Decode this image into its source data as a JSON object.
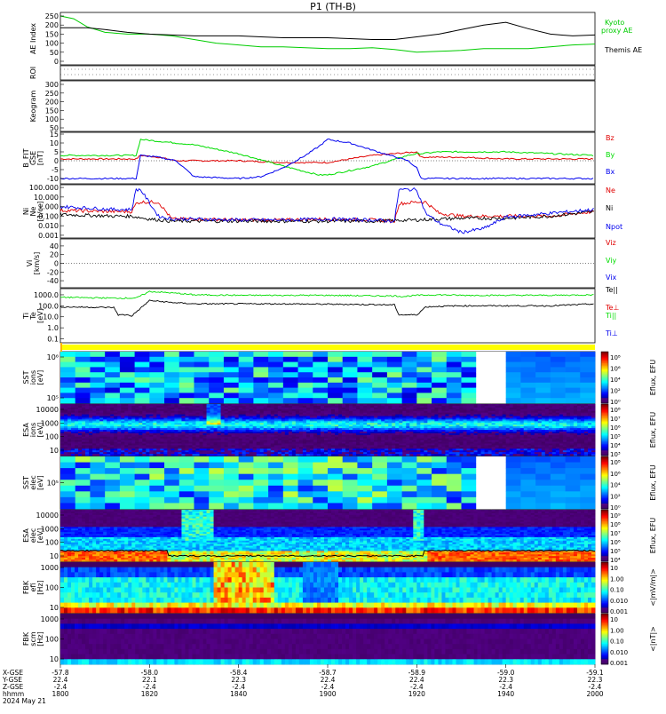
{
  "title": "P1 (TH-B)",
  "colors": {
    "kyoto": "#00cc00",
    "themis": "#000000",
    "red": "#e00000",
    "green": "#00dd00",
    "blue": "#0000ee",
    "bar_yellow": "#ffff00",
    "bar_orange": "#ffb000"
  },
  "chart_data": [
    {
      "type": "line",
      "panel": "ae",
      "ylabel": "AE Index",
      "yticks": [
        "250",
        "200",
        "150",
        "100",
        "50",
        "0"
      ],
      "ylim": [
        0,
        250
      ],
      "series": [
        {
          "name": "Kyoto proxy AE",
          "color": "#00cc00",
          "x": [
            1800,
            1803,
            1806,
            1810,
            1815,
            1820,
            1825,
            1830,
            1835,
            1840,
            1845,
            1850,
            1855,
            1900,
            1905,
            1910,
            1915,
            1920,
            1925,
            1930,
            1935,
            1940,
            1945,
            1950,
            1955,
            2000
          ],
          "y": [
            250,
            235,
            190,
            160,
            150,
            150,
            140,
            120,
            100,
            90,
            80,
            80,
            75,
            70,
            70,
            75,
            65,
            50,
            55,
            60,
            70,
            70,
            70,
            80,
            90,
            95
          ]
        },
        {
          "name": "Themis AE",
          "color": "#000000",
          "x": [
            1800,
            1803,
            1806,
            1810,
            1815,
            1820,
            1825,
            1830,
            1835,
            1840,
            1845,
            1850,
            1855,
            1900,
            1905,
            1910,
            1915,
            1920,
            1925,
            1930,
            1935,
            1940,
            1945,
            1950,
            1955,
            2000
          ],
          "y": [
            185,
            185,
            185,
            175,
            160,
            150,
            145,
            140,
            140,
            140,
            135,
            130,
            130,
            130,
            125,
            120,
            120,
            135,
            150,
            175,
            200,
            215,
            180,
            150,
            140,
            145
          ]
        }
      ]
    },
    {
      "type": "table",
      "panel": "roi",
      "ylabel": "ROI"
    },
    {
      "type": "heatmap",
      "panel": "keogram",
      "ylabel": "Keogram",
      "yticks": [
        "300",
        "250",
        "200",
        "150",
        "100",
        "50"
      ]
    },
    {
      "type": "line",
      "panel": "bfield",
      "ylabel": "B_FIT",
      "ylabel2": "GSE",
      "ylabel3": "[nT]",
      "yticks": [
        "15",
        "10",
        "5",
        "0",
        "-5",
        "-10"
      ],
      "ylim": [
        -12,
        15
      ],
      "series": [
        {
          "name": "Bz",
          "color": "#e00000",
          "x": [
            1800,
            1810,
            1815,
            1817,
            1818,
            1822,
            1826,
            1830,
            1840,
            1850,
            1900,
            1910,
            1920,
            1921,
            1930,
            1940,
            1950,
            2000
          ],
          "y": [
            1,
            1,
            1,
            1,
            3,
            2,
            0,
            0,
            0,
            -1,
            -1,
            3,
            5,
            2,
            2,
            1,
            1,
            1
          ]
        },
        {
          "name": "By",
          "color": "#00dd00",
          "x": [
            1800,
            1810,
            1815,
            1817,
            1818,
            1822,
            1826,
            1830,
            1840,
            1850,
            1858,
            1900,
            1910,
            1918,
            1920,
            1921,
            1925,
            1930,
            1940,
            1950,
            2000
          ],
          "y": [
            3,
            3,
            3,
            3,
            12,
            11,
            10,
            9,
            4,
            -3,
            -8,
            -8,
            -3,
            3,
            4,
            4,
            5,
            5,
            5,
            4,
            3
          ]
        },
        {
          "name": "Bx",
          "color": "#0000ee",
          "x": [
            1800,
            1810,
            1815,
            1817,
            1818,
            1822,
            1826,
            1830,
            1840,
            1845,
            1850,
            1855,
            1858,
            1900,
            1905,
            1910,
            1918,
            1920,
            1921,
            1925,
            1930,
            1940,
            1950,
            2000
          ],
          "y": [
            -10,
            -10,
            -10,
            -10,
            3,
            2,
            0,
            -9,
            -10,
            -9,
            -4,
            3,
            8,
            12,
            10,
            6,
            0,
            -4,
            -10,
            -10,
            -10,
            -10,
            -10,
            -10
          ]
        }
      ]
    },
    {
      "type": "line",
      "panel": "density",
      "ylabel": "Ni",
      "ylabel2": "Ne",
      "ylabel3": "[1/cc]",
      "yticks": [
        "100.000",
        "10.000",
        "1.000",
        "0.100",
        "0.010",
        "0.001"
      ],
      "ylim_log": [
        -3,
        2
      ],
      "series": [
        {
          "name": "Ne",
          "color": "#e00000",
          "x": [
            1800,
            1812,
            1816,
            1817,
            1818,
            1822,
            1825,
            1830,
            1840,
            1850,
            1900,
            1910,
            1915,
            1916,
            1920,
            1922,
            1925,
            1930,
            1940,
            1950,
            2000
          ],
          "y": [
            0.4,
            0.3,
            0.3,
            2,
            3,
            3,
            0.05,
            0.05,
            0.04,
            0.04,
            0.05,
            0.04,
            0.03,
            2,
            3,
            3,
            0.2,
            0.1,
            0.1,
            0.1,
            0.3
          ]
        },
        {
          "name": "Ni",
          "color": "#000000",
          "x": [
            1800,
            1812,
            1816,
            1820,
            1825,
            1830,
            1840,
            1850,
            1900,
            1910,
            1920,
            1925,
            1930,
            1940,
            1950,
            2000
          ],
          "y": [
            0.15,
            0.1,
            0.1,
            0.05,
            0.03,
            0.03,
            0.03,
            0.03,
            0.03,
            0.03,
            0.04,
            0.05,
            0.06,
            0.06,
            0.1,
            0.3
          ]
        },
        {
          "name": "Npot",
          "color": "#0000ee",
          "x": [
            1800,
            1812,
            1816,
            1817,
            1818,
            1822,
            1825,
            1830,
            1840,
            1850,
            1900,
            1910,
            1915,
            1916,
            1920,
            1922,
            1925,
            1930,
            1935,
            1940,
            1950,
            2000
          ],
          "y": [
            1,
            0.5,
            0.5,
            60,
            60,
            0.1,
            0.05,
            0.05,
            0.04,
            0.04,
            0.05,
            0.04,
            0.03,
            60,
            60,
            0.2,
            0.02,
            0.002,
            0.005,
            0.08,
            0.2,
            0.5
          ]
        }
      ]
    },
    {
      "type": "line",
      "panel": "velocity",
      "ylabel": "Vi",
      "ylabel2": "[km/s]",
      "yticks": [
        "40",
        "20",
        "0",
        "-20",
        "-40"
      ],
      "series": [
        {
          "name": "Viz",
          "color": "#e00000"
        },
        {
          "name": "Viy",
          "color": "#00dd00"
        },
        {
          "name": "Vix",
          "color": "#0000ee"
        }
      ]
    },
    {
      "type": "line",
      "panel": "temperature",
      "ylabel": "Ti",
      "ylabel2": "Te",
      "ylabel3": "[eV]",
      "yticks": [
        "1000.0",
        "100.0",
        "10.0",
        "1.0",
        "0.1"
      ],
      "ylim_log": [
        -1.2,
        3.4
      ],
      "labels": [
        "Te||",
        "Te⊥",
        "Ti||",
        "Ti⊥"
      ],
      "series": [
        {
          "name": "Ti",
          "color": "#00dd00",
          "x": [
            1800,
            1812,
            1815,
            1817,
            1820,
            1825,
            1830,
            1840,
            1850,
            1900,
            1910,
            1915,
            1917,
            1920,
            1925,
            1930,
            1940,
            1950,
            2000
          ],
          "y": [
            600,
            500,
            500,
            500,
            2000,
            1500,
            1000,
            900,
            900,
            900,
            800,
            800,
            700,
            900,
            1000,
            900,
            900,
            900,
            1000
          ]
        },
        {
          "name": "Te",
          "color": "#000000",
          "x": [
            1800,
            1812,
            1813,
            1815,
            1816,
            1818,
            1820,
            1825,
            1830,
            1840,
            1850,
            1900,
            1910,
            1915,
            1916,
            1920,
            1922,
            1925,
            1930,
            1940,
            1950,
            2000
          ],
          "y": [
            80,
            70,
            15,
            15,
            12,
            60,
            300,
            200,
            150,
            150,
            150,
            140,
            130,
            120,
            15,
            15,
            80,
            90,
            100,
            100,
            100,
            150
          ]
        }
      ]
    },
    {
      "type": "heatmap",
      "panel": "sst_ion",
      "ylabel": "SST",
      "ylabel2": "ions",
      "ylabel3": "[eV]",
      "yticks": [
        "10⁶",
        "10⁵"
      ],
      "cbar_ticks": [
        "10⁸",
        "10⁶",
        "10⁴",
        "10²",
        "10⁰"
      ],
      "cbar_label": "Eflux, EFU"
    },
    {
      "type": "heatmap",
      "panel": "esa_ion",
      "ylabel": "ESA",
      "ylabel2": "ions",
      "ylabel3": "[eV]",
      "yticks": [
        "10000",
        "1000",
        "100",
        "10"
      ],
      "cbar_ticks": [
        "10⁸",
        "10⁷",
        "10⁶",
        "10⁵",
        "10⁴",
        "10³"
      ],
      "cbar_label": "Eflux, EFU"
    },
    {
      "type": "heatmap",
      "panel": "sst_elec",
      "ylabel": "SST",
      "ylabel2": "elec",
      "ylabel3": "[eV]",
      "yticks": [
        "10⁵"
      ],
      "cbar_ticks": [
        "10⁸",
        "10⁶",
        "10⁴",
        "10²",
        "10⁰"
      ],
      "cbar_label": "Eflux, EFU"
    },
    {
      "type": "heatmap",
      "panel": "esa_elec",
      "ylabel": "ESA",
      "ylabel2": "elec",
      "ylabel3": "[eV]",
      "yticks": [
        "10000",
        "1000",
        "100",
        "10"
      ],
      "cbar_ticks": [
        "10⁹",
        "10⁸",
        "10⁷",
        "10⁶",
        "10⁵",
        "10⁴"
      ],
      "cbar_label": "Eflux, EFU"
    },
    {
      "type": "heatmap",
      "panel": "fbk_e",
      "ylabel": "FBK",
      "ylabel2": "efi",
      "ylabel3": "[Hz]",
      "yticks": [
        "1000",
        "100",
        "10"
      ],
      "cbar_ticks": [
        "10",
        "1.00",
        "0.10",
        "0.010",
        "0.001"
      ],
      "cbar_label": "<|mV/m|>"
    },
    {
      "type": "heatmap",
      "panel": "fbk_b",
      "ylabel": "FBK",
      "ylabel2": "scm",
      "ylabel3": "[Hz]",
      "yticks": [
        "1000",
        "100",
        "10"
      ],
      "cbar_ticks": [
        "10",
        "1.00",
        "0.10",
        "0.010",
        "0.001"
      ],
      "cbar_label": "<|nT|>"
    }
  ],
  "xaxis": {
    "row_labels": [
      "X-GSE",
      "Y-GSE",
      "Z-GSE",
      "hhmm",
      "2024 May 21"
    ],
    "ticks": [
      {
        "x": "-57.8",
        "y": "22.4",
        "z": "-2.4",
        "t": "1800"
      },
      {
        "x": "-58.0",
        "y": "22.1",
        "z": "-2.4",
        "t": "1820"
      },
      {
        "x": "-58.4",
        "y": "22.3",
        "z": "-2.4",
        "t": "1840"
      },
      {
        "x": "-58.7",
        "y": "22.4",
        "z": "-2.4",
        "t": "1900"
      },
      {
        "x": "-58.9",
        "y": "22.4",
        "z": "-2.4",
        "t": "1920"
      },
      {
        "x": "-59.0",
        "y": "22.3",
        "z": "-2.4",
        "t": "1940"
      },
      {
        "x": "-59.1",
        "y": "22.3",
        "z": "-2.4",
        "t": "2000"
      }
    ]
  }
}
